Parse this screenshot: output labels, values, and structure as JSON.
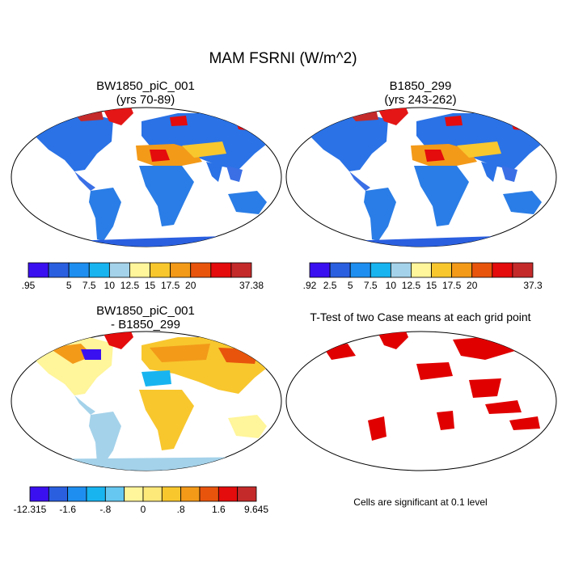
{
  "main_title": "MAM FSRNI (W/m^2)",
  "panels": [
    {
      "title_line1": "BW1850_piC_001",
      "title_line2": "(yrs 70-89)"
    },
    {
      "title_line1": "B1850_299",
      "title_line2": "(yrs 243-262)"
    },
    {
      "title_line1": "BW1850_piC_001",
      "title_line2": "- B1850_299"
    },
    {
      "title_line1": "T-Test of two Case means at each grid point",
      "title_line2": ""
    }
  ],
  "colorbars": [
    {
      "colors": [
        "#3b10f0",
        "#2a5fe0",
        "#1e8ff0",
        "#18b4f0",
        "#a4d2ea",
        "#fff59a",
        "#f8c72e",
        "#f39a19",
        "#e8540c",
        "#e40c0c",
        "#c42a2a"
      ],
      "labels": [
        ".95",
        "5",
        "7.5",
        "10",
        "12.5",
        "15",
        "17.5",
        "20",
        "37.38"
      ],
      "label_edges": [
        0,
        2,
        3,
        4,
        5,
        6,
        7,
        8,
        11
      ]
    },
    {
      "colors": [
        "#3b10f0",
        "#2a5fe0",
        "#1e8ff0",
        "#18b4f0",
        "#a4d2ea",
        "#fff59a",
        "#f8c72e",
        "#f39a19",
        "#e8540c",
        "#e40c0c",
        "#c42a2a"
      ],
      "labels": [
        ".92",
        "2.5",
        "5",
        "7.5",
        "10",
        "12.5",
        "15",
        "17.5",
        "20",
        "37.3"
      ],
      "label_edges": [
        0,
        1,
        2,
        3,
        4,
        5,
        6,
        7,
        8,
        11
      ]
    },
    {
      "colors": [
        "#3b10f0",
        "#2a5fe0",
        "#1e8ff0",
        "#18b4f0",
        "#66c8f0",
        "#fff59a",
        "#fde87a",
        "#f8c72e",
        "#f39a19",
        "#e8540c",
        "#e40c0c",
        "#c42a2a"
      ],
      "labels": [
        "-12.315",
        "-1.6",
        "-.8",
        "0",
        ".8",
        "1.6",
        "9.645"
      ],
      "label_edges": [
        0,
        2,
        4,
        6,
        8,
        10,
        12
      ]
    }
  ],
  "significance_color": "#e00000",
  "footnote": "Cells are significant at 0.1 level"
}
